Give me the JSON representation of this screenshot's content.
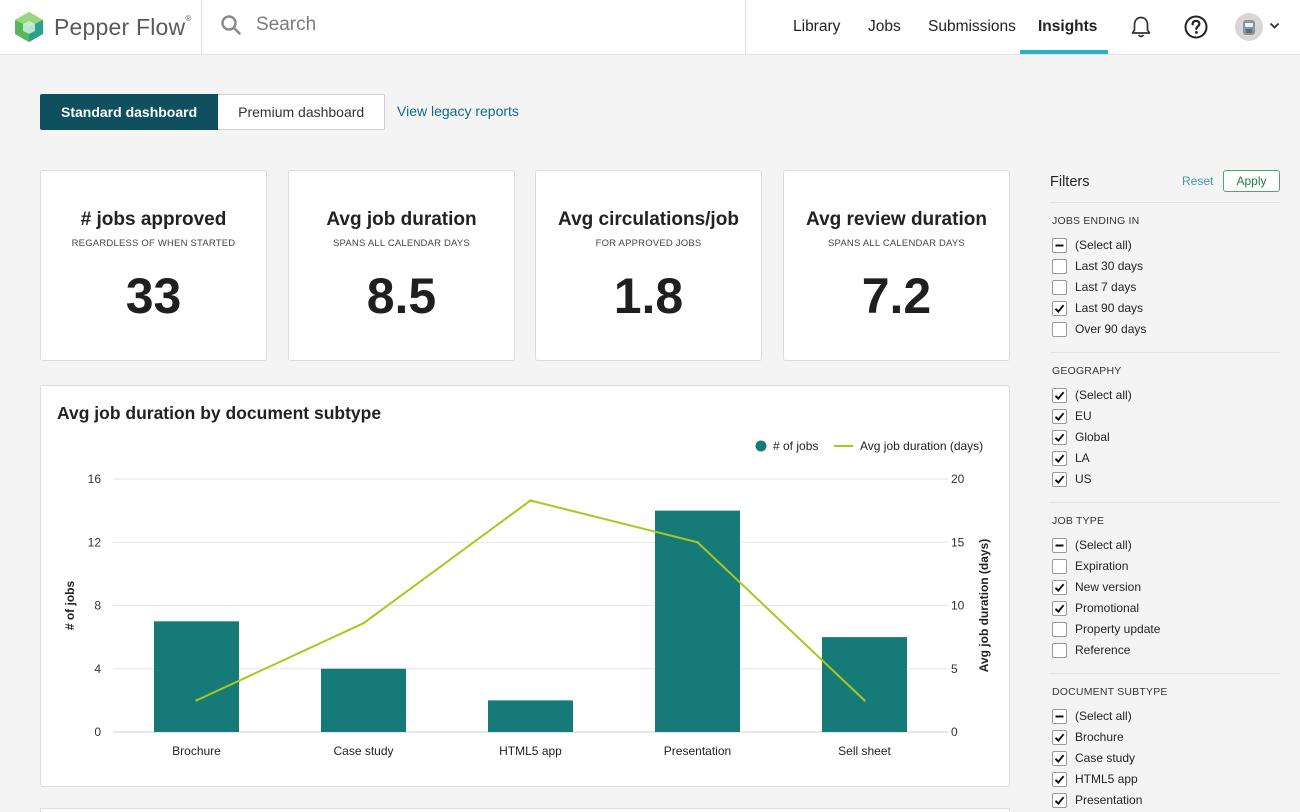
{
  "header": {
    "brand": "Pepper Flow",
    "brand_mark": "®",
    "search_placeholder": "Search",
    "nav": [
      {
        "label": "Library"
      },
      {
        "label": "Jobs"
      },
      {
        "label": "Submissions"
      },
      {
        "label": "Insights",
        "active": true
      }
    ],
    "icons": [
      "bell-icon",
      "help-icon",
      "avatar",
      "chevron-down-icon"
    ]
  },
  "dashboard_tabs": {
    "standard": "Standard dashboard",
    "premium": "Premium dashboard",
    "active": "standard"
  },
  "legacy_link": "View legacy reports",
  "kpis": [
    {
      "title": "# jobs approved",
      "subtitle": "REGARDLESS OF WHEN STARTED",
      "value": "33"
    },
    {
      "title": "Avg job duration",
      "subtitle": "SPANS ALL CALENDAR DAYS",
      "value": "8.5"
    },
    {
      "title": "Avg circulations/job",
      "subtitle": "FOR APPROVED JOBS",
      "value": "1.8"
    },
    {
      "title": "Avg review duration",
      "subtitle": "SPANS ALL CALENDAR DAYS",
      "value": "7.2"
    }
  ],
  "chart_data": {
    "type": "bar",
    "title": "Avg job duration by document subtype",
    "categories": [
      "Brochure",
      "Case study",
      "HTML5 app",
      "Presentation",
      "Sell sheet"
    ],
    "series": [
      {
        "name": "# of jobs",
        "type": "bar",
        "axis": "left",
        "color": "#167a78",
        "values": [
          7,
          4,
          2,
          14,
          6
        ]
      },
      {
        "name": "Avg job duration (days)",
        "type": "line",
        "axis": "right",
        "color": "#a8c81e",
        "values": [
          2.5,
          8.6,
          18.3,
          15,
          2.5
        ]
      }
    ],
    "ylabel": "# of jobs",
    "y2label": "Avg job duration (days)",
    "ylim": [
      0,
      16
    ],
    "y2lim": [
      0,
      20
    ],
    "yticks": [
      "0",
      "4",
      "8",
      "12",
      "16"
    ],
    "y2ticks": [
      "0",
      "5",
      "10",
      "15",
      "20"
    ],
    "grid": true,
    "legend": "top-right"
  },
  "filters": {
    "title": "Filters",
    "reset": "Reset",
    "apply": "Apply",
    "groups": [
      {
        "title": "JOBS ENDING IN",
        "options": [
          {
            "label": "(Select all)",
            "state": "partial"
          },
          {
            "label": "Last 30 days",
            "state": "unchecked"
          },
          {
            "label": "Last 7 days",
            "state": "unchecked"
          },
          {
            "label": "Last 90 days",
            "state": "checked"
          },
          {
            "label": "Over 90 days",
            "state": "unchecked"
          }
        ]
      },
      {
        "title": "GEOGRAPHY",
        "options": [
          {
            "label": "(Select all)",
            "state": "checked"
          },
          {
            "label": "EU",
            "state": "checked"
          },
          {
            "label": "Global",
            "state": "checked"
          },
          {
            "label": "LA",
            "state": "checked"
          },
          {
            "label": "US",
            "state": "checked"
          }
        ]
      },
      {
        "title": "JOB TYPE",
        "options": [
          {
            "label": "(Select all)",
            "state": "partial"
          },
          {
            "label": "Expiration",
            "state": "unchecked"
          },
          {
            "label": "New version",
            "state": "checked"
          },
          {
            "label": "Promotional",
            "state": "checked"
          },
          {
            "label": "Property update",
            "state": "unchecked"
          },
          {
            "label": "Reference",
            "state": "unchecked"
          }
        ]
      },
      {
        "title": "DOCUMENT SUBTYPE",
        "options": [
          {
            "label": "(Select all)",
            "state": "partial"
          },
          {
            "label": "Brochure",
            "state": "checked"
          },
          {
            "label": "Case study",
            "state": "checked"
          },
          {
            "label": "HTML5 app",
            "state": "checked"
          },
          {
            "label": "Presentation",
            "state": "checked"
          }
        ]
      }
    ]
  }
}
